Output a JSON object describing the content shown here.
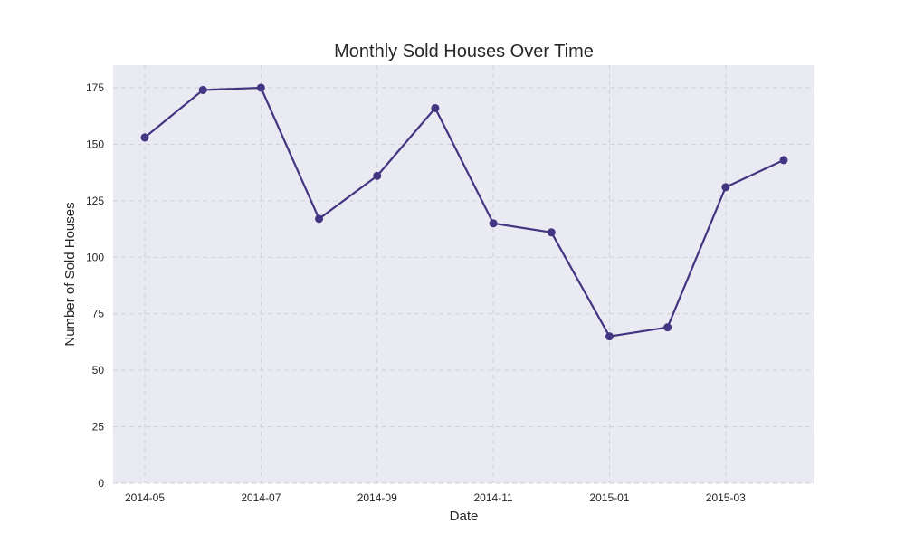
{
  "chart_data": {
    "type": "line",
    "title": "Monthly Sold Houses Over Time",
    "xlabel": "Date",
    "ylabel": "Number of Sold Houses",
    "x": [
      "2014-05",
      "2014-06",
      "2014-07",
      "2014-08",
      "2014-09",
      "2014-10",
      "2014-11",
      "2014-12",
      "2015-01",
      "2015-02",
      "2015-03",
      "2015-04"
    ],
    "series": [
      {
        "values": [
          153,
          174,
          175,
          117,
          136,
          166,
          115,
          111,
          65,
          69,
          131,
          143
        ]
      }
    ],
    "x_tick_labels": [
      "2014-05",
      "2014-07",
      "2014-09",
      "2014-11",
      "2015-01",
      "2015-03"
    ],
    "y_ticks": [
      0,
      25,
      50,
      75,
      100,
      125,
      150,
      175
    ],
    "ylim": [
      0,
      185
    ],
    "grid": true,
    "colors": {
      "line": "#433581",
      "plot_bg": "#eaeaf2",
      "grid": "#cfcfd6"
    }
  }
}
